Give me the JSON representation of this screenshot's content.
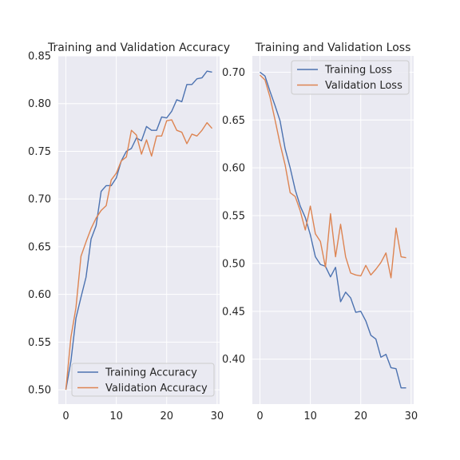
{
  "chart_data": [
    {
      "type": "line",
      "title": "Training and Validation Accuracy",
      "xlabel": "",
      "ylabel": "",
      "xlim": [
        -1.5,
        30.5
      ],
      "ylim": [
        0.485,
        0.85
      ],
      "xticks": [
        0,
        10,
        20,
        30
      ],
      "yticks": [
        0.5,
        0.55,
        0.6,
        0.65,
        0.7,
        0.75,
        0.8,
        0.85
      ],
      "ytick_labels": [
        "0.50",
        "0.55",
        "0.60",
        "0.65",
        "0.70",
        "0.75",
        "0.80",
        "0.85"
      ],
      "grid": true,
      "legend_position": "lower-right",
      "x": [
        0,
        1,
        2,
        3,
        4,
        5,
        6,
        7,
        8,
        9,
        10,
        11,
        12,
        13,
        14,
        15,
        16,
        17,
        18,
        19,
        20,
        21,
        22,
        23,
        24,
        25,
        26,
        27,
        28,
        29
      ],
      "series": [
        {
          "name": "Training Accuracy",
          "color": "#4c72b0",
          "values": [
            0.5,
            0.53,
            0.575,
            0.597,
            0.618,
            0.658,
            0.672,
            0.708,
            0.714,
            0.714,
            0.722,
            0.74,
            0.75,
            0.753,
            0.764,
            0.761,
            0.776,
            0.772,
            0.772,
            0.786,
            0.785,
            0.792,
            0.804,
            0.802,
            0.82,
            0.82,
            0.826,
            0.827,
            0.834,
            0.833
          ]
        },
        {
          "name": "Validation Accuracy",
          "color": "#dd8452",
          "values": [
            0.5,
            0.555,
            0.586,
            0.64,
            0.655,
            0.669,
            0.68,
            0.688,
            0.693,
            0.72,
            0.727,
            0.74,
            0.744,
            0.772,
            0.767,
            0.747,
            0.762,
            0.745,
            0.766,
            0.766,
            0.782,
            0.783,
            0.772,
            0.77,
            0.758,
            0.768,
            0.766,
            0.772,
            0.78,
            0.774
          ]
        }
      ]
    },
    {
      "type": "line",
      "title": "Training and Validation Loss",
      "xlabel": "",
      "ylabel": "",
      "xlim": [
        -1.5,
        30.5
      ],
      "ylim": [
        0.353,
        0.717
      ],
      "xticks": [
        0,
        10,
        20,
        30
      ],
      "yticks": [
        0.4,
        0.45,
        0.5,
        0.55,
        0.6,
        0.65,
        0.7
      ],
      "ytick_labels": [
        "0.40",
        "0.45",
        "0.50",
        "0.55",
        "0.60",
        "0.65",
        "0.70"
      ],
      "grid": true,
      "legend_position": "upper-right",
      "x": [
        0,
        1,
        2,
        3,
        4,
        5,
        6,
        7,
        8,
        9,
        10,
        11,
        12,
        13,
        14,
        15,
        16,
        17,
        18,
        19,
        20,
        21,
        22,
        23,
        24,
        25,
        26,
        27,
        28,
        29
      ],
      "series": [
        {
          "name": "Training Loss",
          "color": "#4c72b0",
          "values": [
            0.7,
            0.696,
            0.68,
            0.665,
            0.649,
            0.62,
            0.6,
            0.577,
            0.56,
            0.548,
            0.53,
            0.507,
            0.499,
            0.497,
            0.486,
            0.496,
            0.46,
            0.47,
            0.464,
            0.449,
            0.45,
            0.44,
            0.425,
            0.421,
            0.402,
            0.405,
            0.391,
            0.39,
            0.37,
            0.37
          ]
        },
        {
          "name": "Validation Loss",
          "color": "#dd8452",
          "values": [
            0.697,
            0.692,
            0.674,
            0.65,
            0.625,
            0.603,
            0.574,
            0.57,
            0.555,
            0.535,
            0.56,
            0.531,
            0.523,
            0.496,
            0.552,
            0.507,
            0.541,
            0.507,
            0.49,
            0.488,
            0.487,
            0.498,
            0.488,
            0.494,
            0.501,
            0.511,
            0.485,
            0.537,
            0.507,
            0.506
          ]
        }
      ]
    }
  ]
}
